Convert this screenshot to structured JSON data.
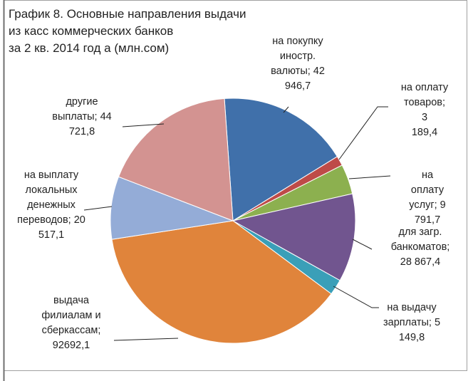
{
  "chart_data": {
    "type": "pie",
    "title": "График 8. Основные направления выдачи\nиз касс коммерческих банков\nза 2 кв. 2014 год а (млн.сом)",
    "values": [
      42946.7,
      3189.4,
      9791.7,
      28867.4,
      5149.8,
      92692.1,
      20517.1,
      44721.8
    ],
    "value_labels": [
      "на покупку\nиностр.\nвалюты; 42\n946,7",
      "на оплату\nтоваров; 3\n189,4",
      "на оплату\nуслуг; 9 791,7",
      "для загр.\nбанкоматов;\n28 867,4",
      "на выдачу\nзарплаты; 5\n149,8",
      "выдача\nфилиалам и\nсберкассам;\n92692,1",
      "на выплату\nлокальных\nденежных\nпереводов; 20\n517,1",
      "другие\nвыплаты; 44\n721,8"
    ],
    "colors": [
      "#4070aa",
      "#be4b48",
      "#8cb04f",
      "#71558f",
      "#3a9fb8",
      "#e0843b",
      "#94acd7",
      "#d39391"
    ]
  }
}
